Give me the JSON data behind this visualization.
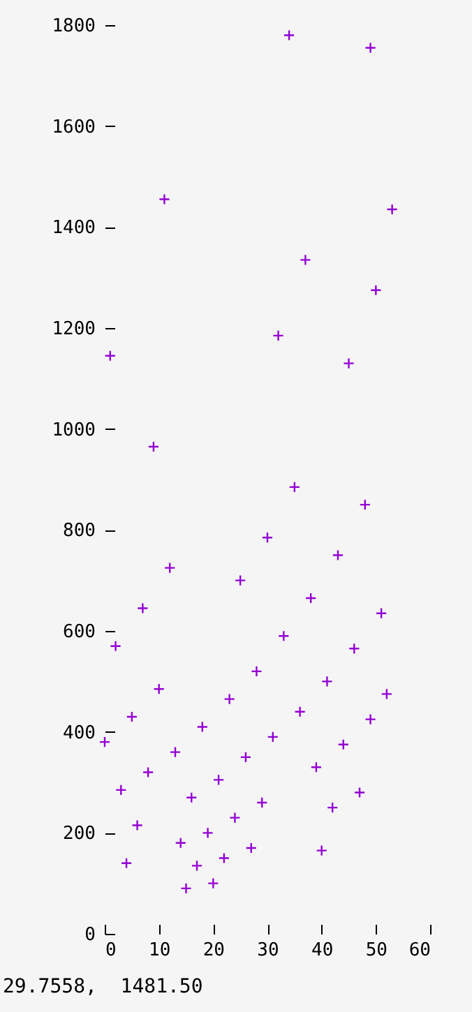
{
  "chart_data": {
    "type": "scatter",
    "x": [
      34,
      49,
      11,
      53,
      37,
      50,
      32,
      1,
      45,
      9,
      35,
      48,
      30,
      43,
      12,
      25,
      38,
      7,
      51,
      33,
      2,
      46,
      28,
      41,
      10,
      52,
      23,
      5,
      36,
      49,
      18,
      31,
      0,
      44,
      13,
      26,
      8,
      39,
      21,
      3,
      47,
      16,
      29,
      42,
      24,
      6,
      19,
      14,
      27,
      40,
      22,
      4,
      17,
      20,
      15
    ],
    "series": [
      {
        "color": "#9400d3",
        "values": [
          1780,
          1755,
          1455,
          1435,
          1335,
          1275,
          1185,
          1145,
          1130,
          965,
          885,
          850,
          785,
          750,
          725,
          700,
          665,
          645,
          635,
          590,
          570,
          565,
          520,
          500,
          485,
          475,
          465,
          430,
          440,
          425,
          410,
          390,
          380,
          375,
          360,
          350,
          320,
          330,
          305,
          285,
          280,
          270,
          260,
          250,
          230,
          215,
          200,
          180,
          170,
          165,
          150,
          140,
          135,
          100,
          90
        ]
      }
    ],
    "xlim": [
      0,
      60
    ],
    "ylim": [
      0,
      1800
    ],
    "xticks": [
      0,
      10,
      20,
      30,
      40,
      50,
      60
    ],
    "yticks": [
      0,
      200,
      400,
      600,
      800,
      1000,
      1200,
      1400,
      1600,
      1800
    ],
    "grid": false,
    "marker": "cross",
    "annotations": [
      "29.7558,  1481.50"
    ]
  }
}
